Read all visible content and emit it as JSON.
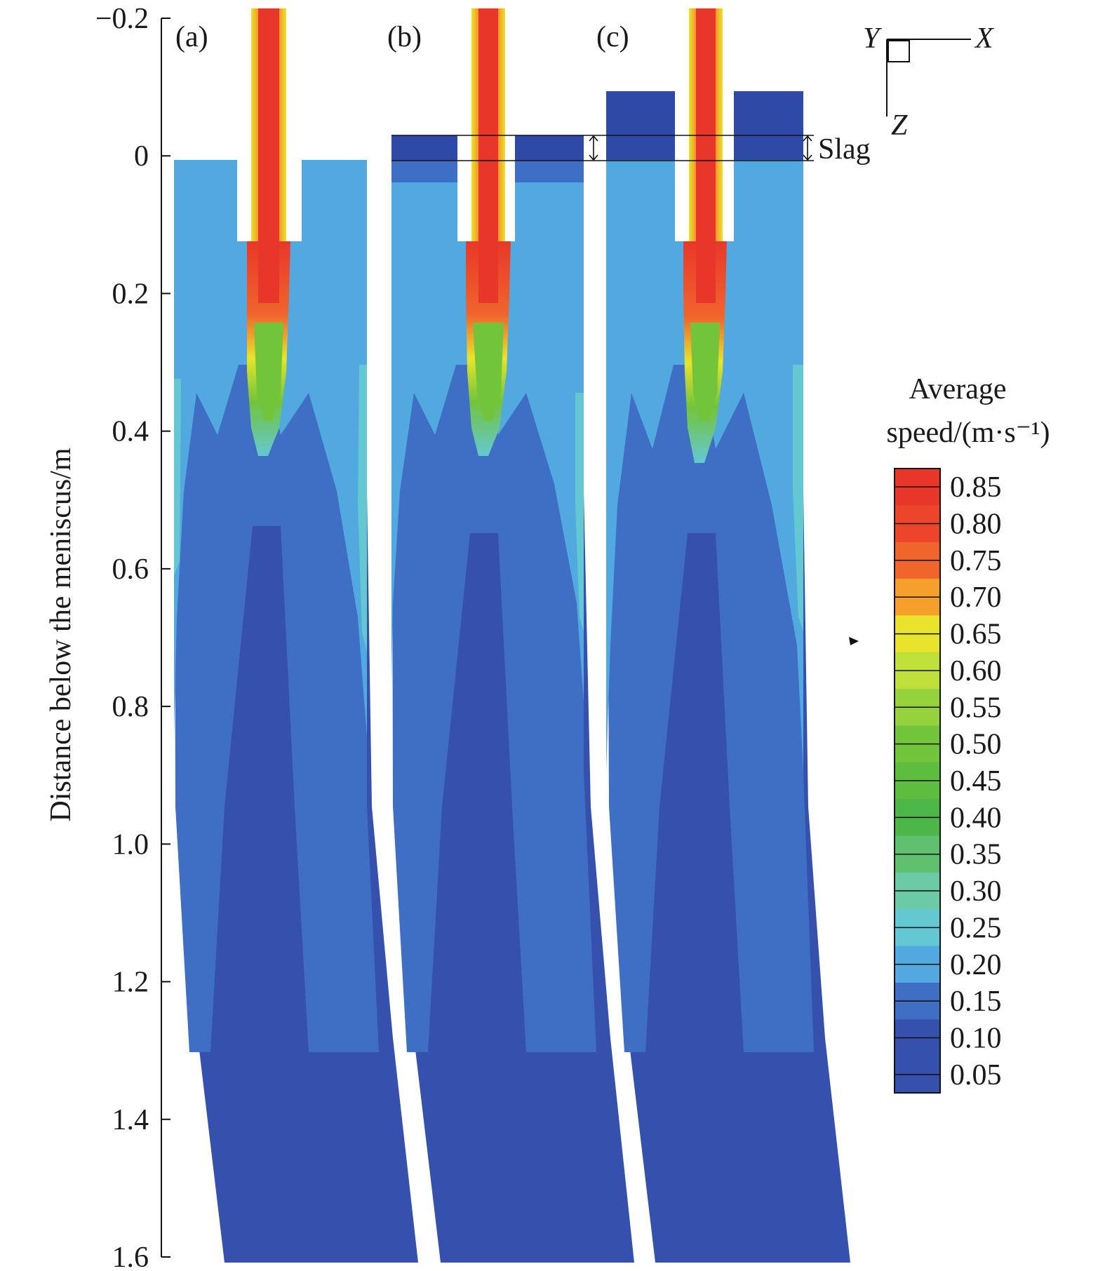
{
  "figure": {
    "panel_labels": [
      "(a)",
      "(b)",
      "(c)"
    ],
    "y_axis": {
      "label": "Distance below the meniscus/m",
      "ticks": [
        "−0.2",
        "0",
        "0.2",
        "0.4",
        "0.6",
        "0.8",
        "1.0",
        "1.2",
        "1.4",
        "1.6"
      ],
      "range": [
        -0.2,
        1.6
      ],
      "direction": "downward"
    },
    "slag_label": "Slag",
    "axes_triad": {
      "y": "Y",
      "x": "X",
      "z": "Z"
    },
    "colorbar": {
      "title_line1": "Average",
      "title_line2": "speed/(m·s⁻¹)",
      "ticks": [
        "0.85",
        "0.80",
        "0.75",
        "0.70",
        "0.65",
        "0.60",
        "0.55",
        "0.50",
        "0.45",
        "0.40",
        "0.35",
        "0.30",
        "0.25",
        "0.20",
        "0.15",
        "0.10",
        "0.05"
      ],
      "colors": [
        "#e8362a",
        "#ec452c",
        "#f0652c",
        "#f4a02a",
        "#e8e42c",
        "#bfe03a",
        "#96d23c",
        "#72c43a",
        "#5ebd3e",
        "#4cb648",
        "#60c070",
        "#6ccaa6",
        "#64c8d2",
        "#52a9e0",
        "#3f6fc4",
        "#3551ad",
        "#3551ad"
      ]
    },
    "contour_colors": {
      "slag": "#2e4aa6",
      "low": "#3551ad",
      "mid_low": "#3f6fc4",
      "mid": "#52a9e0",
      "cyan": "#64c8d2",
      "green": "#66c24a",
      "yellow": "#e8e42c",
      "orange": "#f0652c",
      "red": "#e8362a"
    }
  }
}
